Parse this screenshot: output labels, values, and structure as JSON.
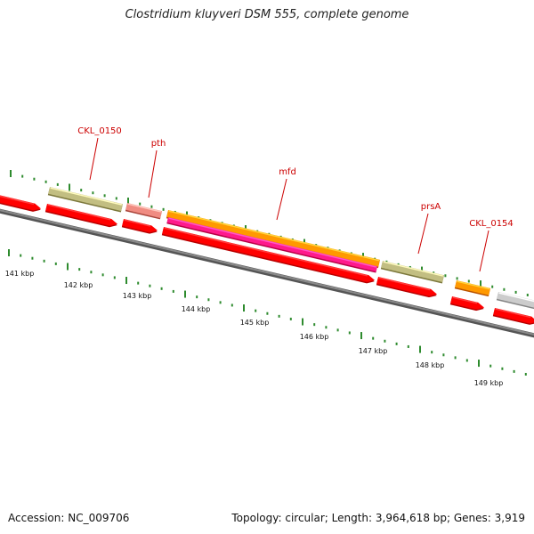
{
  "title": "Clostridium kluyveri DSM 555, complete genome",
  "footer": {
    "accession": "Accession: NC_009706",
    "summary": "Topology: circular; Length: 3,964,618 bp; Genes: 3,919"
  },
  "colors": {
    "forward_gene": "#ff0000",
    "olive_gene": "#c2be82",
    "salmon_gene": "#f08c82",
    "orange_gene": "#ff9900",
    "magenta_gene": "#ff1a8c",
    "gray_gene": "#cccccc",
    "backbone": "#777777",
    "ticks": "#2e8b2e",
    "gene_labels": "#cc0000"
  },
  "map": {
    "kbp_labels": [
      "141 kbp",
      "142 kbp",
      "143 kbp",
      "144 kbp",
      "145 kbp",
      "146 kbp",
      "147 kbp",
      "148 kbp",
      "149 kbp"
    ],
    "gene_labels": [
      {
        "id": "lbl_CKL_0150",
        "text": "CKL_0150"
      },
      {
        "id": "lbl_pth",
        "text": "pth"
      },
      {
        "id": "lbl_mfd",
        "text": "mfd"
      },
      {
        "id": "lbl_prsA",
        "text": "prsA"
      },
      {
        "id": "lbl_CKL_0154",
        "text": "CKL_0154"
      }
    ]
  }
}
